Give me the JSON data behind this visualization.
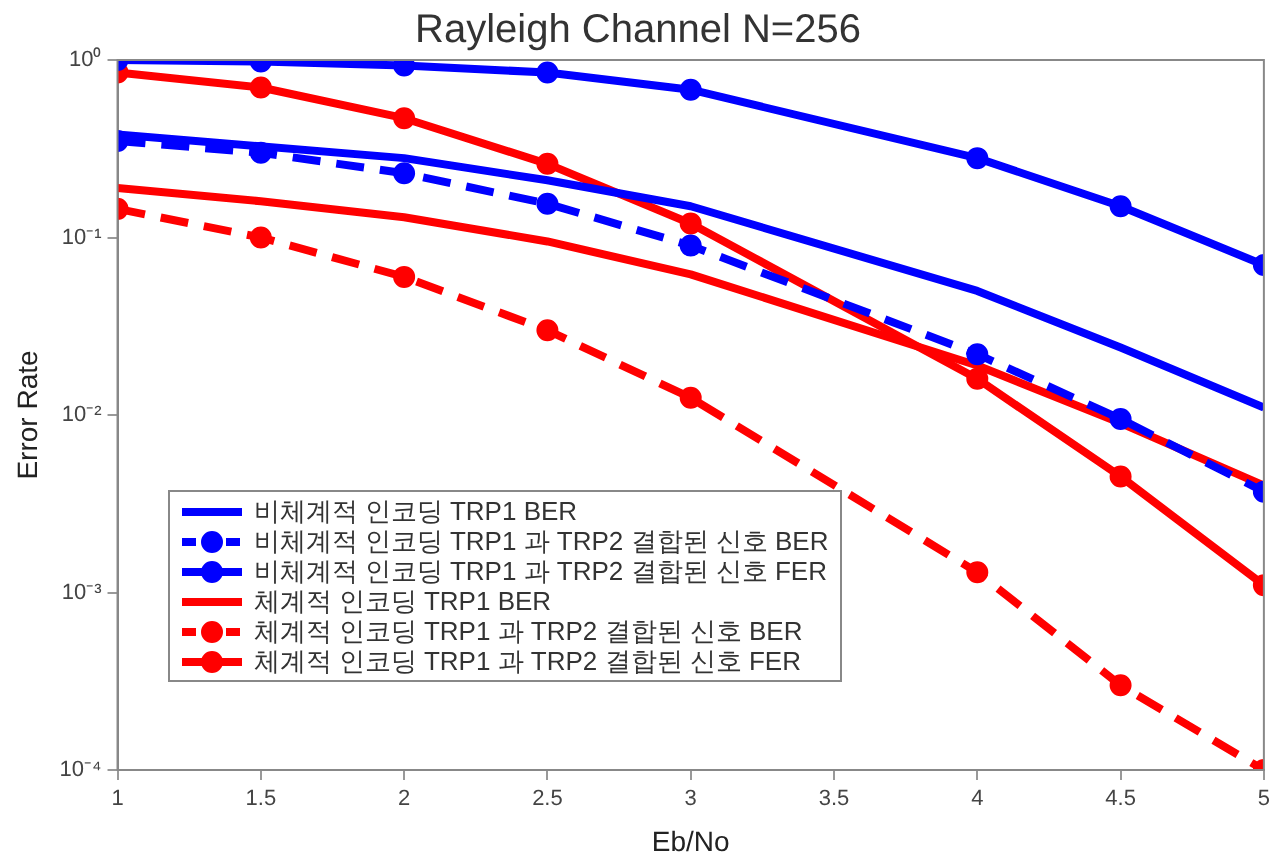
{
  "chart_data": {
    "type": "line",
    "title": "Rayleigh Channel N=256",
    "xlabel": "Eb/No",
    "ylabel": "Error Rate",
    "log": "y",
    "grid": false,
    "legend": "bottom left",
    "xlim": [
      1,
      5
    ],
    "xticks": [
      1,
      1.5,
      2,
      2.5,
      3,
      3.5,
      4,
      4.5,
      5
    ],
    "ylim": [
      0.0001,
      1
    ],
    "yticks": [
      {
        "value": 0.0001,
        "label": "10⁻⁴"
      },
      {
        "value": 0.001,
        "label": "10⁻³"
      },
      {
        "value": 0.01,
        "label": "10⁻²"
      },
      {
        "value": 0.1,
        "label": "10⁻¹"
      },
      {
        "value": 1,
        "label": "10⁰"
      }
    ],
    "series": [
      {
        "name": "비체계적 인코딩 TRP1 BER",
        "color": "#0000ff",
        "line_style": "solid",
        "marker": "none",
        "x": [
          1,
          2,
          2.5,
          3,
          4,
          4.5,
          5
        ],
        "values": [
          0.38,
          0.28,
          0.21,
          0.15,
          0.05,
          0.024,
          0.011
        ]
      },
      {
        "name": "비체계적 인코딩 TRP1 과 TRP2 결합된 신호 BER",
        "color": "#0000ff",
        "line_style": "dashed",
        "marker": "circle",
        "x": [
          1,
          1.5,
          2,
          2.5,
          3,
          4,
          4.5,
          5
        ],
        "values": [
          0.35,
          0.3,
          0.23,
          0.155,
          0.09,
          0.022,
          0.0095,
          0.0037
        ]
      },
      {
        "name": "비체계적 인코딩 TRP1 과 TRP2 결합된 신호 FER",
        "color": "#0000ff",
        "line_style": "solid",
        "marker": "circle",
        "x": [
          1,
          1.5,
          2,
          2.5,
          3,
          4,
          4.5,
          5
        ],
        "values": [
          1,
          0.98,
          0.93,
          0.85,
          0.68,
          0.28,
          0.15,
          0.07
        ]
      },
      {
        "name": "체계적 인코딩 TRP1 BER",
        "color": "#ff0000",
        "line_style": "solid",
        "marker": "none",
        "x": [
          1,
          1.5,
          2,
          2.5,
          3,
          4,
          4.5,
          5
        ],
        "values": [
          0.19,
          0.16,
          0.13,
          0.095,
          0.062,
          0.019,
          0.009,
          0.004
        ]
      },
      {
        "name": "체계적 인코딩 TRP1 과 TRP2 결합된 신호 BER",
        "color": "#ff0000",
        "line_style": "dashed",
        "marker": "circle",
        "x": [
          1,
          1.5,
          2,
          2.5,
          3,
          4,
          4.5,
          5
        ],
        "values": [
          0.145,
          0.1,
          0.06,
          0.03,
          0.0125,
          0.0013,
          0.0003,
          0.0001
        ]
      },
      {
        "name": "체계적 인코딩 TRP1 과 TRP2 결합된 신호 FER",
        "color": "#ff0000",
        "line_style": "solid",
        "marker": "circle",
        "x": [
          1,
          1.5,
          2,
          2.5,
          3,
          4,
          4.5,
          5
        ],
        "values": [
          0.85,
          0.7,
          0.47,
          0.26,
          0.12,
          0.016,
          0.0045,
          0.0011
        ]
      }
    ]
  }
}
